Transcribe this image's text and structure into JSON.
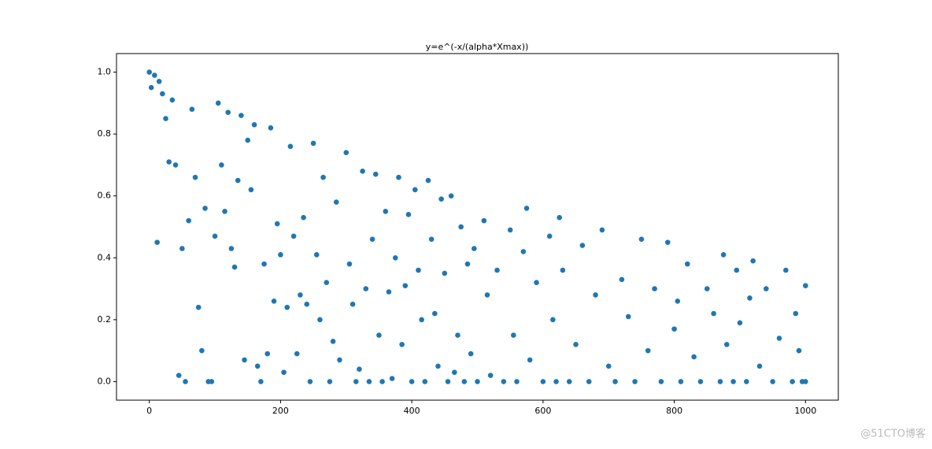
{
  "chart_data": {
    "type": "scatter",
    "title": "y=e^(-x/(alpha*Xmax))",
    "color": "#1f77b4",
    "x": [
      0,
      3,
      8,
      12,
      15,
      20,
      25,
      30,
      35,
      40,
      45,
      50,
      55,
      60,
      65,
      70,
      75,
      80,
      85,
      90,
      95,
      100,
      105,
      110,
      115,
      120,
      125,
      130,
      135,
      140,
      145,
      150,
      155,
      160,
      165,
      170,
      175,
      180,
      185,
      190,
      195,
      200,
      205,
      210,
      215,
      220,
      225,
      230,
      235,
      240,
      245,
      250,
      255,
      260,
      265,
      270,
      275,
      280,
      285,
      290,
      300,
      305,
      310,
      315,
      320,
      325,
      330,
      335,
      340,
      345,
      350,
      355,
      360,
      365,
      370,
      375,
      380,
      385,
      390,
      395,
      400,
      405,
      410,
      415,
      420,
      425,
      430,
      435,
      440,
      445,
      450,
      455,
      460,
      465,
      470,
      475,
      480,
      485,
      490,
      495,
      500,
      510,
      515,
      520,
      530,
      540,
      550,
      555,
      560,
      570,
      575,
      580,
      590,
      600,
      610,
      615,
      620,
      625,
      630,
      640,
      650,
      660,
      670,
      680,
      690,
      700,
      710,
      720,
      730,
      740,
      750,
      760,
      770,
      780,
      790,
      800,
      805,
      810,
      820,
      830,
      840,
      850,
      860,
      870,
      875,
      880,
      890,
      895,
      900,
      910,
      915,
      920,
      930,
      940,
      950,
      960,
      970,
      980,
      985,
      990,
      995,
      1000,
      1000
    ],
    "values": [
      1.0,
      0.95,
      0.99,
      0.45,
      0.97,
      0.93,
      0.85,
      0.71,
      0.91,
      0.7,
      0.02,
      0.43,
      0.0,
      0.52,
      0.88,
      0.66,
      0.24,
      0.1,
      0.56,
      0.0,
      0.0,
      0.47,
      0.9,
      0.7,
      0.55,
      0.87,
      0.43,
      0.37,
      0.65,
      0.86,
      0.07,
      0.78,
      0.62,
      0.83,
      0.05,
      0.0,
      0.38,
      0.09,
      0.82,
      0.26,
      0.51,
      0.41,
      0.03,
      0.24,
      0.76,
      0.47,
      0.09,
      0.28,
      0.53,
      0.25,
      0.0,
      0.77,
      0.41,
      0.2,
      0.66,
      0.32,
      0.0,
      0.13,
      0.58,
      0.07,
      0.74,
      0.38,
      0.25,
      0.0,
      0.04,
      0.68,
      0.3,
      0.0,
      0.46,
      0.67,
      0.15,
      0.0,
      0.55,
      0.29,
      0.01,
      0.4,
      0.66,
      0.12,
      0.31,
      0.54,
      0.0,
      0.62,
      0.36,
      0.2,
      0.0,
      0.65,
      0.46,
      0.22,
      0.05,
      0.59,
      0.35,
      0.0,
      0.6,
      0.03,
      0.15,
      0.5,
      0.0,
      0.38,
      0.09,
      0.43,
      0.0,
      0.52,
      0.28,
      0.02,
      0.36,
      0.0,
      0.49,
      0.15,
      0.0,
      0.42,
      0.56,
      0.07,
      0.32,
      0.0,
      0.47,
      0.2,
      0.0,
      0.53,
      0.36,
      0.0,
      0.12,
      0.44,
      0.0,
      0.28,
      0.49,
      0.05,
      0.0,
      0.33,
      0.21,
      0.0,
      0.46,
      0.1,
      0.3,
      0.0,
      0.45,
      0.17,
      0.26,
      0.0,
      0.38,
      0.08,
      0.0,
      0.3,
      0.22,
      0.0,
      0.41,
      0.12,
      0.0,
      0.36,
      0.19,
      0.0,
      0.27,
      0.39,
      0.05,
      0.3,
      0.0,
      0.14,
      0.36,
      0.0,
      0.22,
      0.1,
      0.0,
      0.31,
      0.0
    ],
    "xlim": [
      -50,
      1050
    ],
    "ylim": [
      -0.06,
      1.06
    ],
    "xticks": [
      0,
      200,
      400,
      600,
      800,
      1000
    ],
    "yticks": [
      {
        "value": 0,
        "label": "0.0"
      },
      {
        "value": 0.2,
        "label": "0.2"
      },
      {
        "value": 0.4,
        "label": "0.4"
      },
      {
        "value": 0.6,
        "label": "0.6"
      },
      {
        "value": 0.8,
        "label": "0.8"
      },
      {
        "value": 1,
        "label": "1.0"
      }
    ],
    "grid": false
  },
  "watermark": "@51CTO博客"
}
